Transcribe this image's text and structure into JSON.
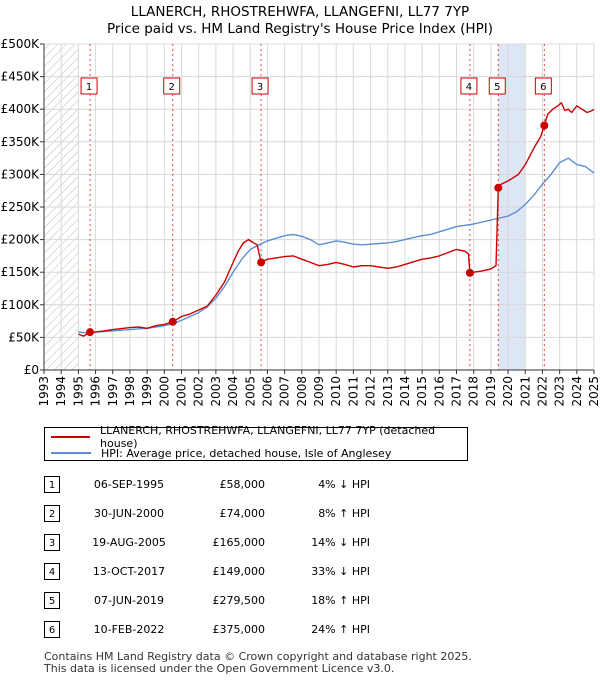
{
  "chart_data": {
    "type": "line",
    "title": "LLANERCH, RHOSTREHWFA, LLANGEFNI, LL77 7YP",
    "subtitle": "Price paid vs. HM Land Registry's House Price Index (HPI)",
    "xlabel": "",
    "ylabel": "",
    "xlim": [
      1993,
      2025
    ],
    "ylim": [
      0,
      500000
    ],
    "y_ticks": [
      {
        "value": 0,
        "label": "£0"
      },
      {
        "value": 50000,
        "label": "£50K"
      },
      {
        "value": 100000,
        "label": "£100K"
      },
      {
        "value": 150000,
        "label": "£150K"
      },
      {
        "value": 200000,
        "label": "£200K"
      },
      {
        "value": 250000,
        "label": "£250K"
      },
      {
        "value": 300000,
        "label": "£300K"
      },
      {
        "value": 350000,
        "label": "£350K"
      },
      {
        "value": 400000,
        "label": "£400K"
      },
      {
        "value": 450000,
        "label": "£450K"
      },
      {
        "value": 500000,
        "label": "£500K"
      }
    ],
    "x_ticks": [
      "1993",
      "1994",
      "1995",
      "1996",
      "1997",
      "1998",
      "1999",
      "2000",
      "2001",
      "2002",
      "2003",
      "2004",
      "2005",
      "2006",
      "2007",
      "2008",
      "2009",
      "2010",
      "2011",
      "2012",
      "2013",
      "2014",
      "2015",
      "2016",
      "2017",
      "2018",
      "2019",
      "2020",
      "2021",
      "2022",
      "2023",
      "2024",
      "2025"
    ],
    "grid": true,
    "hatched_ranges": [
      [
        1993,
        1995
      ]
    ],
    "highlight_ranges": [
      [
        2019.43,
        2021.0
      ]
    ],
    "series": [
      {
        "name": "LLANERCH, RHOSTREHWFA, LLANGEFNI, LL77 7YP (detached house)",
        "color": "#cc0000",
        "x": [
          1995.0,
          1995.3,
          1995.68,
          1996.0,
          1996.5,
          1997.0,
          1997.5,
          1998.0,
          1998.5,
          1999.0,
          1999.5,
          2000.0,
          2000.49,
          2001.0,
          2001.5,
          2002.0,
          2002.5,
          2003.0,
          2003.5,
          2004.0,
          2004.3,
          2004.6,
          2004.9,
          2005.2,
          2005.4,
          2005.63,
          2006.0,
          2006.5,
          2007.0,
          2007.5,
          2008.0,
          2008.5,
          2009.0,
          2009.5,
          2010.0,
          2010.5,
          2011.0,
          2011.5,
          2012.0,
          2012.5,
          2013.0,
          2013.5,
          2014.0,
          2014.5,
          2015.0,
          2015.5,
          2016.0,
          2016.5,
          2017.0,
          2017.5,
          2017.7,
          2017.78,
          2018.0,
          2018.5,
          2019.0,
          2019.3,
          2019.43,
          2019.6,
          2020.0,
          2020.3,
          2020.6,
          2021.0,
          2021.3,
          2021.6,
          2021.9,
          2022.11,
          2022.3,
          2022.6,
          2022.9,
          2023.1,
          2023.3,
          2023.5,
          2023.7,
          2024.0,
          2024.3,
          2024.6,
          2024.9,
          2025.0
        ],
        "values": [
          55000,
          52000,
          58000,
          58500,
          60000,
          62000,
          63500,
          65000,
          66000,
          64000,
          68000,
          70000,
          74000,
          82000,
          86000,
          92000,
          98000,
          115000,
          135000,
          165000,
          182000,
          195000,
          200000,
          195000,
          192000,
          165000,
          170000,
          172000,
          174000,
          175000,
          170000,
          165000,
          160000,
          162000,
          165000,
          162000,
          158000,
          160000,
          160000,
          158000,
          156000,
          158000,
          162000,
          166000,
          170000,
          172000,
          175000,
          180000,
          185000,
          182000,
          178000,
          149000,
          150000,
          152000,
          155000,
          160000,
          279500,
          285000,
          290000,
          295000,
          300000,
          315000,
          330000,
          345000,
          358000,
          375000,
          392000,
          400000,
          405000,
          410000,
          398000,
          400000,
          395000,
          405000,
          400000,
          395000,
          398000,
          400000
        ]
      },
      {
        "name": "HPI: Average price, detached house, Isle of Anglesey",
        "color": "#5b8fd4",
        "x": [
          1995.0,
          1995.5,
          1996.0,
          1996.5,
          1997.0,
          1997.5,
          1998.0,
          1998.5,
          1999.0,
          1999.5,
          2000.0,
          2000.5,
          2001.0,
          2001.5,
          2002.0,
          2002.5,
          2003.0,
          2003.5,
          2004.0,
          2004.5,
          2005.0,
          2005.5,
          2006.0,
          2006.5,
          2007.0,
          2007.5,
          2008.0,
          2008.5,
          2009.0,
          2009.5,
          2010.0,
          2010.5,
          2011.0,
          2011.5,
          2012.0,
          2012.5,
          2013.0,
          2013.5,
          2014.0,
          2014.5,
          2015.0,
          2015.5,
          2016.0,
          2016.5,
          2017.0,
          2017.5,
          2018.0,
          2018.5,
          2019.0,
          2019.5,
          2020.0,
          2020.5,
          2021.0,
          2021.5,
          2022.0,
          2022.5,
          2023.0,
          2023.5,
          2024.0,
          2024.5,
          2025.0
        ],
        "values": [
          58000,
          57000,
          58000,
          59000,
          60000,
          61000,
          62000,
          63000,
          64000,
          66000,
          68000,
          71000,
          76000,
          82000,
          88000,
          97000,
          110000,
          128000,
          150000,
          170000,
          185000,
          192000,
          198000,
          202000,
          206000,
          208000,
          205000,
          200000,
          192000,
          195000,
          198000,
          196000,
          193000,
          192000,
          193000,
          194000,
          195000,
          197000,
          200000,
          203000,
          206000,
          208000,
          212000,
          216000,
          220000,
          222000,
          224000,
          227000,
          230000,
          233000,
          236000,
          243000,
          254000,
          268000,
          285000,
          300000,
          318000,
          325000,
          315000,
          312000,
          302000
        ]
      }
    ],
    "sales": [
      {
        "num": "1",
        "x": 1995.68,
        "value": 58000
      },
      {
        "num": "2",
        "x": 2000.49,
        "value": 74000
      },
      {
        "num": "3",
        "x": 2005.63,
        "value": 165000
      },
      {
        "num": "4",
        "x": 2017.78,
        "value": 149000
      },
      {
        "num": "5",
        "x": 2019.43,
        "value": 279500
      },
      {
        "num": "6",
        "x": 2022.11,
        "value": 375000
      }
    ]
  },
  "legend": {
    "red_label": "LLANERCH, RHOSTREHWFA, LLANGEFNI, LL77 7YP (detached house)",
    "blue_label": "HPI: Average price, detached house, Isle of Anglesey"
  },
  "sales_table": [
    {
      "num": "1",
      "date": "06-SEP-1995",
      "price": "£58,000",
      "hpi": "4% ↓ HPI"
    },
    {
      "num": "2",
      "date": "30-JUN-2000",
      "price": "£74,000",
      "hpi": "8% ↑ HPI"
    },
    {
      "num": "3",
      "date": "19-AUG-2005",
      "price": "£165,000",
      "hpi": "14% ↓ HPI"
    },
    {
      "num": "4",
      "date": "13-OCT-2017",
      "price": "£149,000",
      "hpi": "33% ↓ HPI"
    },
    {
      "num": "5",
      "date": "07-JUN-2019",
      "price": "£279,500",
      "hpi": "18% ↑ HPI"
    },
    {
      "num": "6",
      "date": "10-FEB-2022",
      "price": "£375,000",
      "hpi": "24% ↑ HPI"
    }
  ],
  "footer": {
    "line1": "Contains HM Land Registry data © Crown copyright and database right 2025.",
    "line2": "This data is licensed under the Open Government Licence v3.0."
  },
  "colors": {
    "red": "#cc0000",
    "blue": "#5b8fd4",
    "grid": "#d8d8d8",
    "highlight": "#dde6f5"
  }
}
